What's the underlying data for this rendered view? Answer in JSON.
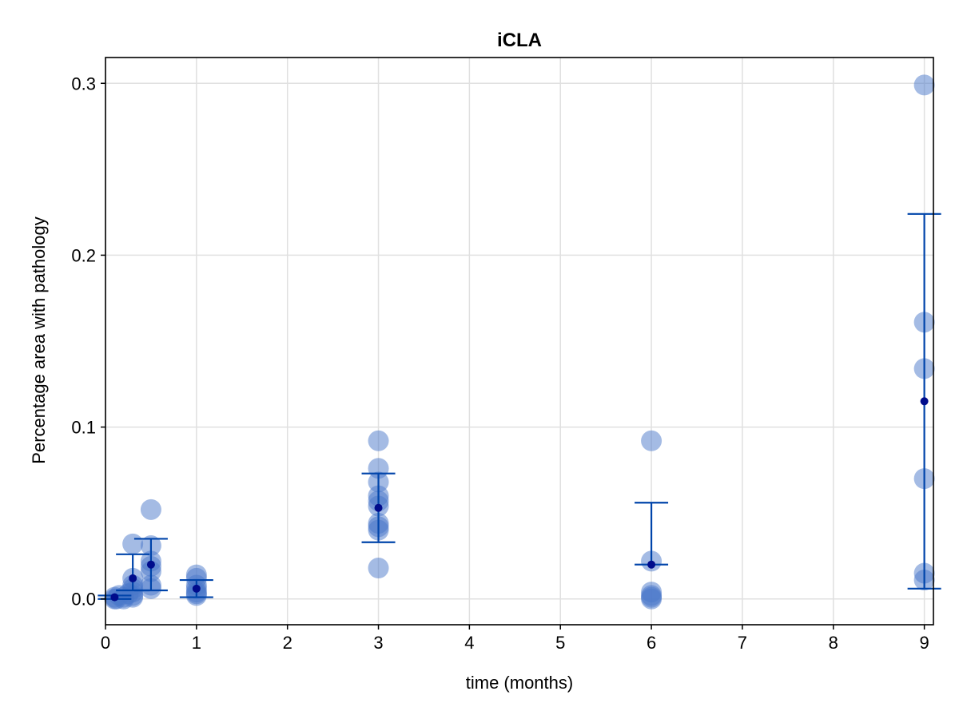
{
  "chart_data": {
    "type": "scatter",
    "title": "iCLA",
    "xlabel": "time (months)",
    "ylabel": "Percentage area with pathology",
    "xlim": [
      0,
      9.1
    ],
    "ylim": [
      -0.015,
      0.315
    ],
    "xticks": [
      0,
      1,
      2,
      3,
      4,
      5,
      6,
      7,
      8,
      9
    ],
    "yticks": [
      0.0,
      0.1,
      0.2,
      0.3
    ],
    "ytick_labels": [
      "0.0",
      "0.1",
      "0.2",
      "0.3"
    ],
    "grid": true,
    "colors": {
      "points": "#4a77c9",
      "errorbar": "#0044aa",
      "mean": "#000c8c",
      "grid": "#e0e0e0",
      "frame": "#000000"
    },
    "series": [
      {
        "values_xy": [
          [
            0.1,
            0.0
          ],
          [
            0.1,
            0.001
          ],
          [
            0.12,
            0.0
          ],
          [
            0.15,
            0.002
          ],
          [
            0.2,
            0.001
          ],
          [
            0.2,
            0.0
          ],
          [
            0.25,
            0.003
          ],
          [
            0.3,
            0.032
          ],
          [
            0.3,
            0.012
          ],
          [
            0.3,
            0.008
          ],
          [
            0.3,
            0.004
          ],
          [
            0.3,
            0.002
          ],
          [
            0.3,
            0.001
          ],
          [
            0.3,
            0.006
          ],
          [
            0.5,
            0.052
          ],
          [
            0.5,
            0.031
          ],
          [
            0.5,
            0.022
          ],
          [
            0.5,
            0.019
          ],
          [
            0.5,
            0.016
          ],
          [
            0.5,
            0.008
          ],
          [
            0.5,
            0.006
          ],
          [
            1.0,
            0.014
          ],
          [
            1.0,
            0.012
          ],
          [
            1.0,
            0.008
          ],
          [
            1.0,
            0.006
          ],
          [
            1.0,
            0.004
          ],
          [
            1.0,
            0.003
          ],
          [
            1.0,
            0.002
          ],
          [
            3.0,
            0.092
          ],
          [
            3.0,
            0.076
          ],
          [
            3.0,
            0.068
          ],
          [
            3.0,
            0.06
          ],
          [
            3.0,
            0.057
          ],
          [
            3.0,
            0.054
          ],
          [
            3.0,
            0.044
          ],
          [
            3.0,
            0.042
          ],
          [
            3.0,
            0.04
          ],
          [
            3.0,
            0.018
          ],
          [
            6.0,
            0.092
          ],
          [
            6.0,
            0.022
          ],
          [
            6.0,
            0.004
          ],
          [
            6.0,
            0.002
          ],
          [
            6.0,
            0.001
          ],
          [
            6.0,
            0.0
          ],
          [
            9.0,
            0.299
          ],
          [
            9.0,
            0.161
          ],
          [
            9.0,
            0.134
          ],
          [
            9.0,
            0.07
          ],
          [
            9.0,
            0.015
          ],
          [
            9.0,
            0.011
          ]
        ]
      }
    ],
    "summary": [
      {
        "x": 0.1,
        "mean": 0.001,
        "low": 0.0,
        "high": 0.002
      },
      {
        "x": 0.3,
        "mean": 0.012,
        "low": 0.005,
        "high": 0.026
      },
      {
        "x": 0.5,
        "mean": 0.02,
        "low": 0.005,
        "high": 0.035
      },
      {
        "x": 1.0,
        "mean": 0.006,
        "low": 0.001,
        "high": 0.011
      },
      {
        "x": 3.0,
        "mean": 0.053,
        "low": 0.033,
        "high": 0.073
      },
      {
        "x": 6.0,
        "mean": 0.02,
        "low": 0.02,
        "high": 0.056
      },
      {
        "x": 9.0,
        "mean": 0.115,
        "low": 0.006,
        "high": 0.224
      }
    ]
  }
}
